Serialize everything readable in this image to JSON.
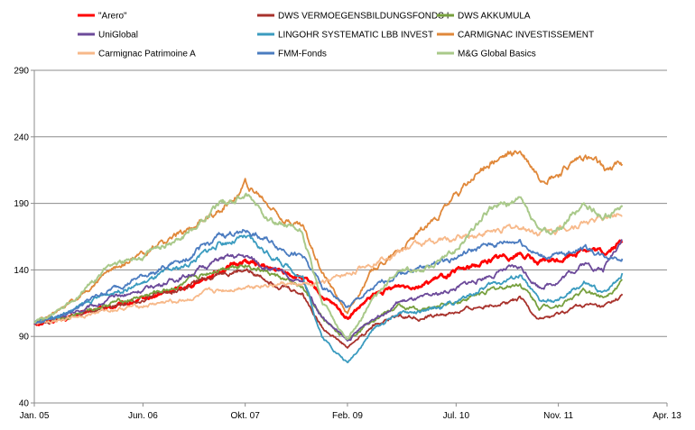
{
  "chart_data": {
    "type": "line",
    "title": "",
    "xlabel": "",
    "ylabel": "",
    "ylim": [
      40,
      290
    ],
    "yticks": [
      40,
      90,
      140,
      190,
      240,
      290
    ],
    "xlim": [
      "2005-01",
      "2013-04"
    ],
    "xticks": [
      {
        "label": "Jan. 05",
        "date": "2005-01"
      },
      {
        "label": "Jun. 06",
        "date": "2006-06"
      },
      {
        "label": "Okt. 07",
        "date": "2007-10"
      },
      {
        "label": "Feb. 09",
        "date": "2009-02"
      },
      {
        "label": "Jul. 10",
        "date": "2010-07"
      },
      {
        "label": "Nov. 11",
        "date": "2011-11"
      },
      {
        "label": "Apr. 13",
        "date": "2013-04"
      }
    ],
    "grid": "horizontal",
    "legend_position": "top",
    "series": [
      {
        "name": "\"Arero\"",
        "color": "#ff0000",
        "width": 2.6,
        "points": [
          [
            "2005-01",
            100
          ],
          [
            "2005-06",
            104
          ],
          [
            "2006-01",
            112
          ],
          [
            "2006-06",
            117
          ],
          [
            "2007-01",
            128
          ],
          [
            "2007-06",
            140
          ],
          [
            "2007-10",
            147
          ],
          [
            "2008-03",
            139
          ],
          [
            "2008-07",
            134
          ],
          [
            "2008-10",
            120
          ],
          [
            "2009-02",
            104
          ],
          [
            "2009-06",
            120
          ],
          [
            "2009-10",
            128
          ],
          [
            "2010-02",
            130
          ],
          [
            "2010-07",
            138
          ],
          [
            "2010-12",
            147
          ],
          [
            "2011-05",
            153
          ],
          [
            "2011-08",
            145
          ],
          [
            "2011-11",
            147
          ],
          [
            "2012-03",
            157
          ],
          [
            "2012-06",
            152
          ],
          [
            "2012-09",
            161
          ]
        ]
      },
      {
        "name": "DWS VERMOEGENSBILDUNGSFONDS  I",
        "color": "#a8322c",
        "width": 1.8,
        "points": [
          [
            "2005-01",
            100
          ],
          [
            "2005-06",
            104
          ],
          [
            "2006-01",
            113
          ],
          [
            "2006-06",
            118
          ],
          [
            "2007-01",
            127
          ],
          [
            "2007-06",
            138
          ],
          [
            "2007-10",
            140
          ],
          [
            "2008-03",
            130
          ],
          [
            "2008-07",
            122
          ],
          [
            "2008-10",
            98
          ],
          [
            "2009-02",
            82
          ],
          [
            "2009-06",
            98
          ],
          [
            "2009-10",
            106
          ],
          [
            "2010-02",
            104
          ],
          [
            "2010-07",
            108
          ],
          [
            "2010-12",
            114
          ],
          [
            "2011-05",
            118
          ],
          [
            "2011-08",
            103
          ],
          [
            "2011-11",
            106
          ],
          [
            "2012-03",
            114
          ],
          [
            "2012-06",
            111
          ],
          [
            "2012-09",
            120
          ]
        ]
      },
      {
        "name": "DWS AKKUMULA",
        "color": "#77a03e",
        "width": 1.8,
        "points": [
          [
            "2005-01",
            100
          ],
          [
            "2005-06",
            105
          ],
          [
            "2006-01",
            115
          ],
          [
            "2006-06",
            120
          ],
          [
            "2007-01",
            130
          ],
          [
            "2007-06",
            142
          ],
          [
            "2007-10",
            145
          ],
          [
            "2008-03",
            135
          ],
          [
            "2008-07",
            126
          ],
          [
            "2008-10",
            103
          ],
          [
            "2009-02",
            88
          ],
          [
            "2009-06",
            104
          ],
          [
            "2009-10",
            112
          ],
          [
            "2010-02",
            110
          ],
          [
            "2010-07",
            116
          ],
          [
            "2010-12",
            124
          ],
          [
            "2011-05",
            130
          ],
          [
            "2011-08",
            112
          ],
          [
            "2011-11",
            114
          ],
          [
            "2012-03",
            124
          ],
          [
            "2012-06",
            120
          ],
          [
            "2012-09",
            132
          ]
        ]
      },
      {
        "name": "UniGlobal",
        "color": "#6c4a9a",
        "width": 1.8,
        "points": [
          [
            "2005-01",
            100
          ],
          [
            "2005-06",
            106
          ],
          [
            "2006-01",
            118
          ],
          [
            "2006-06",
            125
          ],
          [
            "2007-01",
            136
          ],
          [
            "2007-06",
            148
          ],
          [
            "2007-10",
            150
          ],
          [
            "2008-03",
            138
          ],
          [
            "2008-07",
            130
          ],
          [
            "2008-10",
            105
          ],
          [
            "2009-02",
            86
          ],
          [
            "2009-06",
            104
          ],
          [
            "2009-10",
            116
          ],
          [
            "2010-02",
            118
          ],
          [
            "2010-07",
            126
          ],
          [
            "2010-12",
            136
          ],
          [
            "2011-05",
            142
          ],
          [
            "2011-08",
            128
          ],
          [
            "2011-11",
            132
          ],
          [
            "2012-03",
            145
          ],
          [
            "2012-06",
            140
          ],
          [
            "2012-09",
            165
          ]
        ]
      },
      {
        "name": "LINGOHR SYSTEMATIC  LBB INVEST",
        "color": "#3a9bbf",
        "width": 1.8,
        "points": [
          [
            "2005-01",
            100
          ],
          [
            "2005-06",
            108
          ],
          [
            "2006-01",
            123
          ],
          [
            "2006-06",
            130
          ],
          [
            "2007-01",
            144
          ],
          [
            "2007-06",
            160
          ],
          [
            "2007-10",
            164
          ],
          [
            "2008-03",
            148
          ],
          [
            "2008-07",
            135
          ],
          [
            "2008-10",
            90
          ],
          [
            "2009-02",
            70
          ],
          [
            "2009-06",
            95
          ],
          [
            "2009-10",
            108
          ],
          [
            "2010-02",
            108
          ],
          [
            "2010-07",
            116
          ],
          [
            "2010-12",
            128
          ],
          [
            "2011-05",
            136
          ],
          [
            "2011-08",
            116
          ],
          [
            "2011-11",
            116
          ],
          [
            "2012-03",
            130
          ],
          [
            "2012-06",
            122
          ],
          [
            "2012-09",
            138
          ]
        ]
      },
      {
        "name": "CARMIGNAC INVESTISSEMENT",
        "color": "#e0883a",
        "width": 1.8,
        "points": [
          [
            "2005-01",
            100
          ],
          [
            "2005-06",
            112
          ],
          [
            "2006-01",
            140
          ],
          [
            "2006-06",
            152
          ],
          [
            "2007-01",
            170
          ],
          [
            "2007-06",
            185
          ],
          [
            "2007-10",
            205
          ],
          [
            "2008-03",
            182
          ],
          [
            "2008-07",
            172
          ],
          [
            "2008-10",
            140
          ],
          [
            "2009-02",
            108
          ],
          [
            "2009-06",
            140
          ],
          [
            "2009-10",
            155
          ],
          [
            "2010-02",
            170
          ],
          [
            "2010-07",
            195
          ],
          [
            "2010-12",
            220
          ],
          [
            "2011-05",
            228
          ],
          [
            "2011-08",
            210
          ],
          [
            "2011-11",
            212
          ],
          [
            "2012-03",
            225
          ],
          [
            "2012-06",
            215
          ],
          [
            "2012-09",
            220
          ]
        ]
      },
      {
        "name": "Carmignac Patrimoine A",
        "color": "#f7b98a",
        "width": 1.8,
        "points": [
          [
            "2005-01",
            100
          ],
          [
            "2005-06",
            104
          ],
          [
            "2006-01",
            110
          ],
          [
            "2006-06",
            113
          ],
          [
            "2007-01",
            118
          ],
          [
            "2007-06",
            124
          ],
          [
            "2007-10",
            128
          ],
          [
            "2008-03",
            130
          ],
          [
            "2008-07",
            128
          ],
          [
            "2008-10",
            130
          ],
          [
            "2009-02",
            136
          ],
          [
            "2009-06",
            146
          ],
          [
            "2009-10",
            155
          ],
          [
            "2010-02",
            160
          ],
          [
            "2010-07",
            164
          ],
          [
            "2010-12",
            168
          ],
          [
            "2011-05",
            172
          ],
          [
            "2011-08",
            168
          ],
          [
            "2011-11",
            170
          ],
          [
            "2012-03",
            176
          ],
          [
            "2012-06",
            178
          ],
          [
            "2012-09",
            183
          ]
        ]
      },
      {
        "name": "FMM-Fonds",
        "color": "#4b7cc0",
        "width": 1.8,
        "points": [
          [
            "2005-01",
            100
          ],
          [
            "2005-06",
            108
          ],
          [
            "2006-01",
            125
          ],
          [
            "2006-06",
            135
          ],
          [
            "2007-01",
            150
          ],
          [
            "2007-06",
            165
          ],
          [
            "2007-10",
            170
          ],
          [
            "2008-03",
            158
          ],
          [
            "2008-07",
            150
          ],
          [
            "2008-10",
            128
          ],
          [
            "2009-02",
            112
          ],
          [
            "2009-06",
            125
          ],
          [
            "2009-10",
            138
          ],
          [
            "2010-02",
            142
          ],
          [
            "2010-07",
            150
          ],
          [
            "2010-12",
            158
          ],
          [
            "2011-05",
            162
          ],
          [
            "2011-08",
            150
          ],
          [
            "2011-11",
            150
          ],
          [
            "2012-03",
            158
          ],
          [
            "2012-06",
            150
          ],
          [
            "2012-09",
            150
          ]
        ]
      },
      {
        "name": "M&G Global Basics",
        "color": "#a9c98a",
        "width": 2.0,
        "points": [
          [
            "2005-01",
            100
          ],
          [
            "2005-06",
            112
          ],
          [
            "2006-01",
            145
          ],
          [
            "2006-06",
            150
          ],
          [
            "2007-01",
            168
          ],
          [
            "2007-06",
            190
          ],
          [
            "2007-10",
            196
          ],
          [
            "2008-03",
            175
          ],
          [
            "2008-07",
            168
          ],
          [
            "2008-10",
            115
          ],
          [
            "2009-02",
            88
          ],
          [
            "2009-06",
            118
          ],
          [
            "2009-10",
            140
          ],
          [
            "2010-02",
            140
          ],
          [
            "2010-07",
            155
          ],
          [
            "2010-12",
            185
          ],
          [
            "2011-05",
            192
          ],
          [
            "2011-08",
            168
          ],
          [
            "2011-11",
            170
          ],
          [
            "2012-03",
            190
          ],
          [
            "2012-06",
            180
          ],
          [
            "2012-09",
            188
          ]
        ]
      }
    ]
  }
}
